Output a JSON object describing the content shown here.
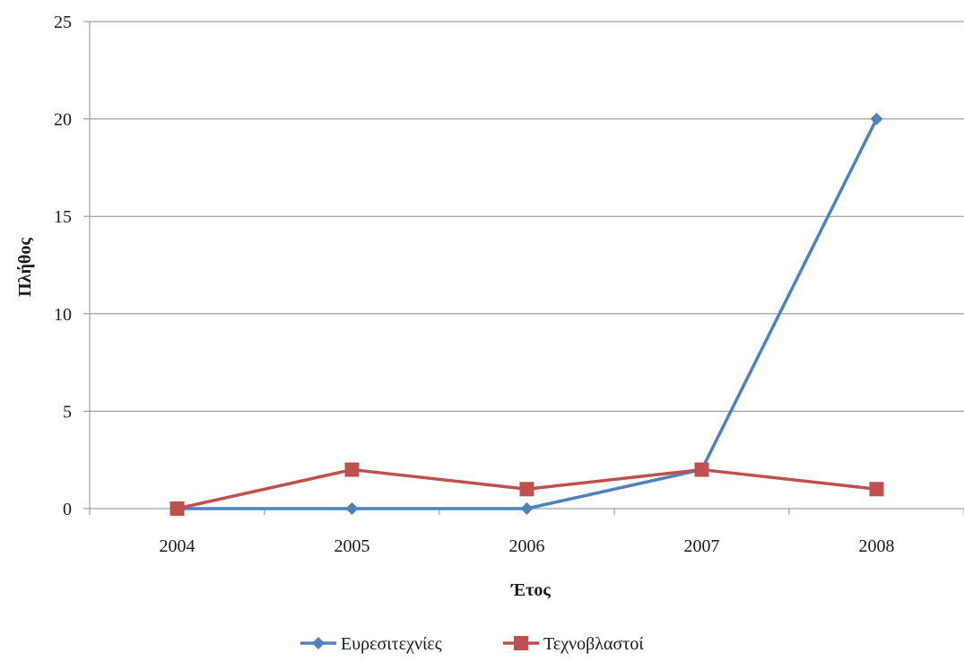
{
  "chart_data": {
    "type": "line",
    "title": "",
    "xlabel": "Έτος",
    "ylabel": "Πλήθος",
    "categories": [
      "2004",
      "2005",
      "2006",
      "2007",
      "2008"
    ],
    "ylim": [
      0,
      25
    ],
    "yticks": [
      0,
      5,
      10,
      15,
      20,
      25
    ],
    "grid": true,
    "legend_position": "bottom",
    "series": [
      {
        "name": "Ευρεσιτεχνίες",
        "values": [
          0,
          0,
          0,
          2,
          20
        ],
        "color": "#4f81bd",
        "marker": "diamond"
      },
      {
        "name": "Τεχνοβλαστοί",
        "values": [
          0,
          2,
          1,
          2,
          1
        ],
        "color": "#c0504d",
        "marker": "square"
      }
    ]
  }
}
